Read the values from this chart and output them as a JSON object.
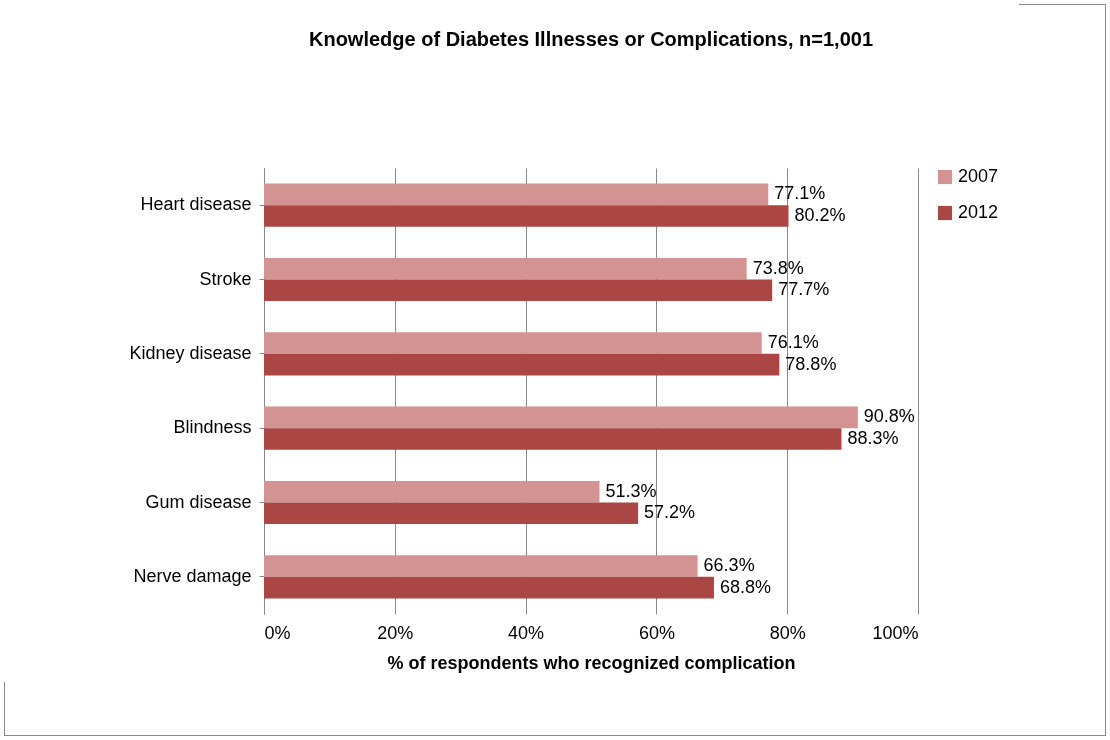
{
  "chart_data": {
    "type": "bar",
    "orientation": "horizontal",
    "title": "Knowledge of Diabetes Illnesses or Complications,  n=1,001",
    "xlabel": "% of respondents who recognized complication",
    "categories": [
      "Heart disease",
      "Stroke",
      "Kidney disease",
      "Blindness",
      "Gum disease",
      "Nerve damage"
    ],
    "series": [
      {
        "name": "2007",
        "color": "#d39392",
        "values": [
          77.1,
          73.8,
          76.1,
          90.8,
          51.3,
          66.3
        ],
        "value_labels": [
          "77.1%",
          "73.8%",
          "76.1%",
          "90.8%",
          "51.3%",
          "66.3%"
        ]
      },
      {
        "name": "2012",
        "color": "#aa4744",
        "values": [
          80.2,
          77.7,
          78.8,
          88.3,
          57.2,
          68.8
        ],
        "value_labels": [
          "80.2%",
          "77.7%",
          "78.8%",
          "88.3%",
          "57.2%",
          "68.8%"
        ]
      }
    ],
    "xlim": [
      0,
      100
    ],
    "xticks": [
      {
        "value": 0,
        "label": "0%"
      },
      {
        "value": 20,
        "label": "20%"
      },
      {
        "value": 40,
        "label": "40%"
      },
      {
        "value": 60,
        "label": "60%"
      },
      {
        "value": 80,
        "label": "80%"
      },
      {
        "value": 100,
        "label": "100%"
      }
    ],
    "grid": "x",
    "legend": "right"
  }
}
